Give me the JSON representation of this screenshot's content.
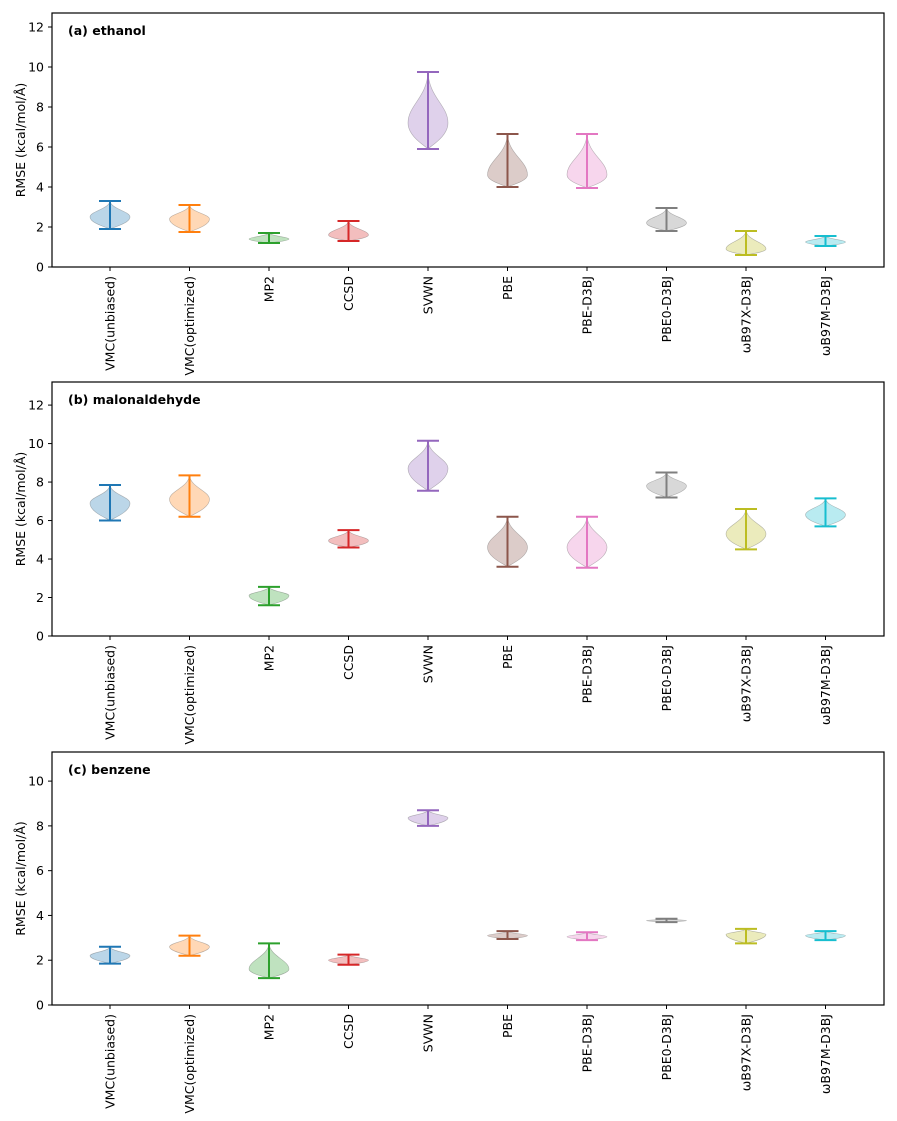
{
  "chart_data": [
    {
      "type": "violin",
      "title": "(a) ethanol",
      "xlabel": "",
      "ylabel": "RMSE (kcal/mol/Å)",
      "ylim": [
        0,
        12.7
      ],
      "yticks": [
        0,
        2,
        4,
        6,
        8,
        10,
        12
      ],
      "categories": [
        "VMC(unbiased)",
        "VMC(optimized)",
        "MP2",
        "CCSD",
        "SVWN",
        "PBE",
        "PBE-D3BJ",
        "PBE0-D3BJ",
        "ωB97X-D3BJ",
        "ωB97M-D3BJ"
      ],
      "series": [
        {
          "name": "VMC(unbiased)",
          "color": "#1f77b4",
          "min": 1.9,
          "max": 3.3,
          "peak": 2.5,
          "half_width": 0.5
        },
        {
          "name": "VMC(optimized)",
          "color": "#ff7f0e",
          "min": 1.75,
          "max": 3.1,
          "peak": 2.4,
          "half_width": 0.5
        },
        {
          "name": "MP2",
          "color": "#2ca02c",
          "min": 1.2,
          "max": 1.7,
          "peak": 1.4,
          "half_width": 0.5
        },
        {
          "name": "CCSD",
          "color": "#d62728",
          "min": 1.3,
          "max": 2.3,
          "peak": 1.6,
          "half_width": 0.5
        },
        {
          "name": "SVWN",
          "color": "#9467bd",
          "min": 5.9,
          "max": 9.75,
          "peak": 7.2,
          "half_width": 0.5
        },
        {
          "name": "PBE",
          "color": "#8c564b",
          "min": 4.0,
          "max": 6.65,
          "peak": 4.6,
          "half_width": 0.5
        },
        {
          "name": "PBE-D3BJ",
          "color": "#e377c2",
          "min": 3.95,
          "max": 6.65,
          "peak": 4.6,
          "half_width": 0.5
        },
        {
          "name": "PBE0-D3BJ",
          "color": "#7f7f7f",
          "min": 1.8,
          "max": 2.95,
          "peak": 2.2,
          "half_width": 0.5
        },
        {
          "name": "ωB97X-D3BJ",
          "color": "#bcbd22",
          "min": 0.6,
          "max": 1.8,
          "peak": 0.9,
          "half_width": 0.5
        },
        {
          "name": "ωB97M-D3BJ",
          "color": "#17becf",
          "min": 1.05,
          "max": 1.55,
          "peak": 1.25,
          "half_width": 0.5
        }
      ]
    },
    {
      "type": "violin",
      "title": "(b) malonaldehyde",
      "xlabel": "",
      "ylabel": "RMSE (kcal/mol/Å)",
      "ylim": [
        0,
        13.2
      ],
      "yticks": [
        0,
        2,
        4,
        6,
        8,
        10,
        12
      ],
      "categories": [
        "VMC(unbiased)",
        "VMC(optimized)",
        "MP2",
        "CCSD",
        "SVWN",
        "PBE",
        "PBE-D3BJ",
        "PBE0-D3BJ",
        "ωB97X-D3BJ",
        "ωB97M-D3BJ"
      ],
      "series": [
        {
          "name": "VMC(unbiased)",
          "color": "#1f77b4",
          "min": 6.0,
          "max": 7.85,
          "peak": 6.9,
          "half_width": 0.5
        },
        {
          "name": "VMC(optimized)",
          "color": "#ff7f0e",
          "min": 6.2,
          "max": 8.35,
          "peak": 7.1,
          "half_width": 0.5
        },
        {
          "name": "MP2",
          "color": "#2ca02c",
          "min": 1.6,
          "max": 2.55,
          "peak": 2.1,
          "half_width": 0.5
        },
        {
          "name": "CCSD",
          "color": "#d62728",
          "min": 4.6,
          "max": 5.5,
          "peak": 4.95,
          "half_width": 0.5
        },
        {
          "name": "SVWN",
          "color": "#9467bd",
          "min": 7.55,
          "max": 10.15,
          "peak": 8.7,
          "half_width": 0.5
        },
        {
          "name": "PBE",
          "color": "#8c564b",
          "min": 3.6,
          "max": 6.2,
          "peak": 4.6,
          "half_width": 0.5
        },
        {
          "name": "PBE-D3BJ",
          "color": "#e377c2",
          "min": 3.55,
          "max": 6.2,
          "peak": 4.6,
          "half_width": 0.5
        },
        {
          "name": "PBE0-D3BJ",
          "color": "#7f7f7f",
          "min": 7.2,
          "max": 8.5,
          "peak": 7.8,
          "half_width": 0.5
        },
        {
          "name": "ωB97X-D3BJ",
          "color": "#bcbd22",
          "min": 4.5,
          "max": 6.6,
          "peak": 5.3,
          "half_width": 0.5
        },
        {
          "name": "ωB97M-D3BJ",
          "color": "#17becf",
          "min": 5.7,
          "max": 7.15,
          "peak": 6.3,
          "half_width": 0.5
        }
      ]
    },
    {
      "type": "violin",
      "title": "(c) benzene",
      "xlabel": "",
      "ylabel": "RMSE (kcal/mol/Å)",
      "ylim": [
        0,
        11.3
      ],
      "yticks": [
        0,
        2,
        4,
        6,
        8,
        10
      ],
      "categories": [
        "VMC(unbiased)",
        "VMC(optimized)",
        "MP2",
        "CCSD",
        "SVWN",
        "PBE",
        "PBE-D3BJ",
        "PBE0-D3BJ",
        "ωB97X-D3BJ",
        "ωB97M-D3BJ"
      ],
      "series": [
        {
          "name": "VMC(unbiased)",
          "color": "#1f77b4",
          "min": 1.85,
          "max": 2.6,
          "peak": 2.2,
          "half_width": 0.5
        },
        {
          "name": "VMC(optimized)",
          "color": "#ff7f0e",
          "min": 2.2,
          "max": 3.1,
          "peak": 2.6,
          "half_width": 0.5
        },
        {
          "name": "MP2",
          "color": "#2ca02c",
          "min": 1.2,
          "max": 2.75,
          "peak": 1.6,
          "half_width": 0.5
        },
        {
          "name": "CCSD",
          "color": "#d62728",
          "min": 1.8,
          "max": 2.25,
          "peak": 2.0,
          "half_width": 0.5
        },
        {
          "name": "SVWN",
          "color": "#9467bd",
          "min": 8.0,
          "max": 8.7,
          "peak": 8.35,
          "half_width": 0.5
        },
        {
          "name": "PBE",
          "color": "#8c564b",
          "min": 2.95,
          "max": 3.3,
          "peak": 3.1,
          "half_width": 0.5
        },
        {
          "name": "PBE-D3BJ",
          "color": "#e377c2",
          "min": 2.9,
          "max": 3.25,
          "peak": 3.05,
          "half_width": 0.5
        },
        {
          "name": "PBE0-D3BJ",
          "color": "#7f7f7f",
          "min": 3.7,
          "max": 3.85,
          "peak": 3.77,
          "half_width": 0.5
        },
        {
          "name": "ωB97X-D3BJ",
          "color": "#bcbd22",
          "min": 2.75,
          "max": 3.4,
          "peak": 3.15,
          "half_width": 0.5
        },
        {
          "name": "ωB97M-D3BJ",
          "color": "#17becf",
          "min": 2.9,
          "max": 3.3,
          "peak": 3.1,
          "half_width": 0.5
        }
      ]
    }
  ]
}
